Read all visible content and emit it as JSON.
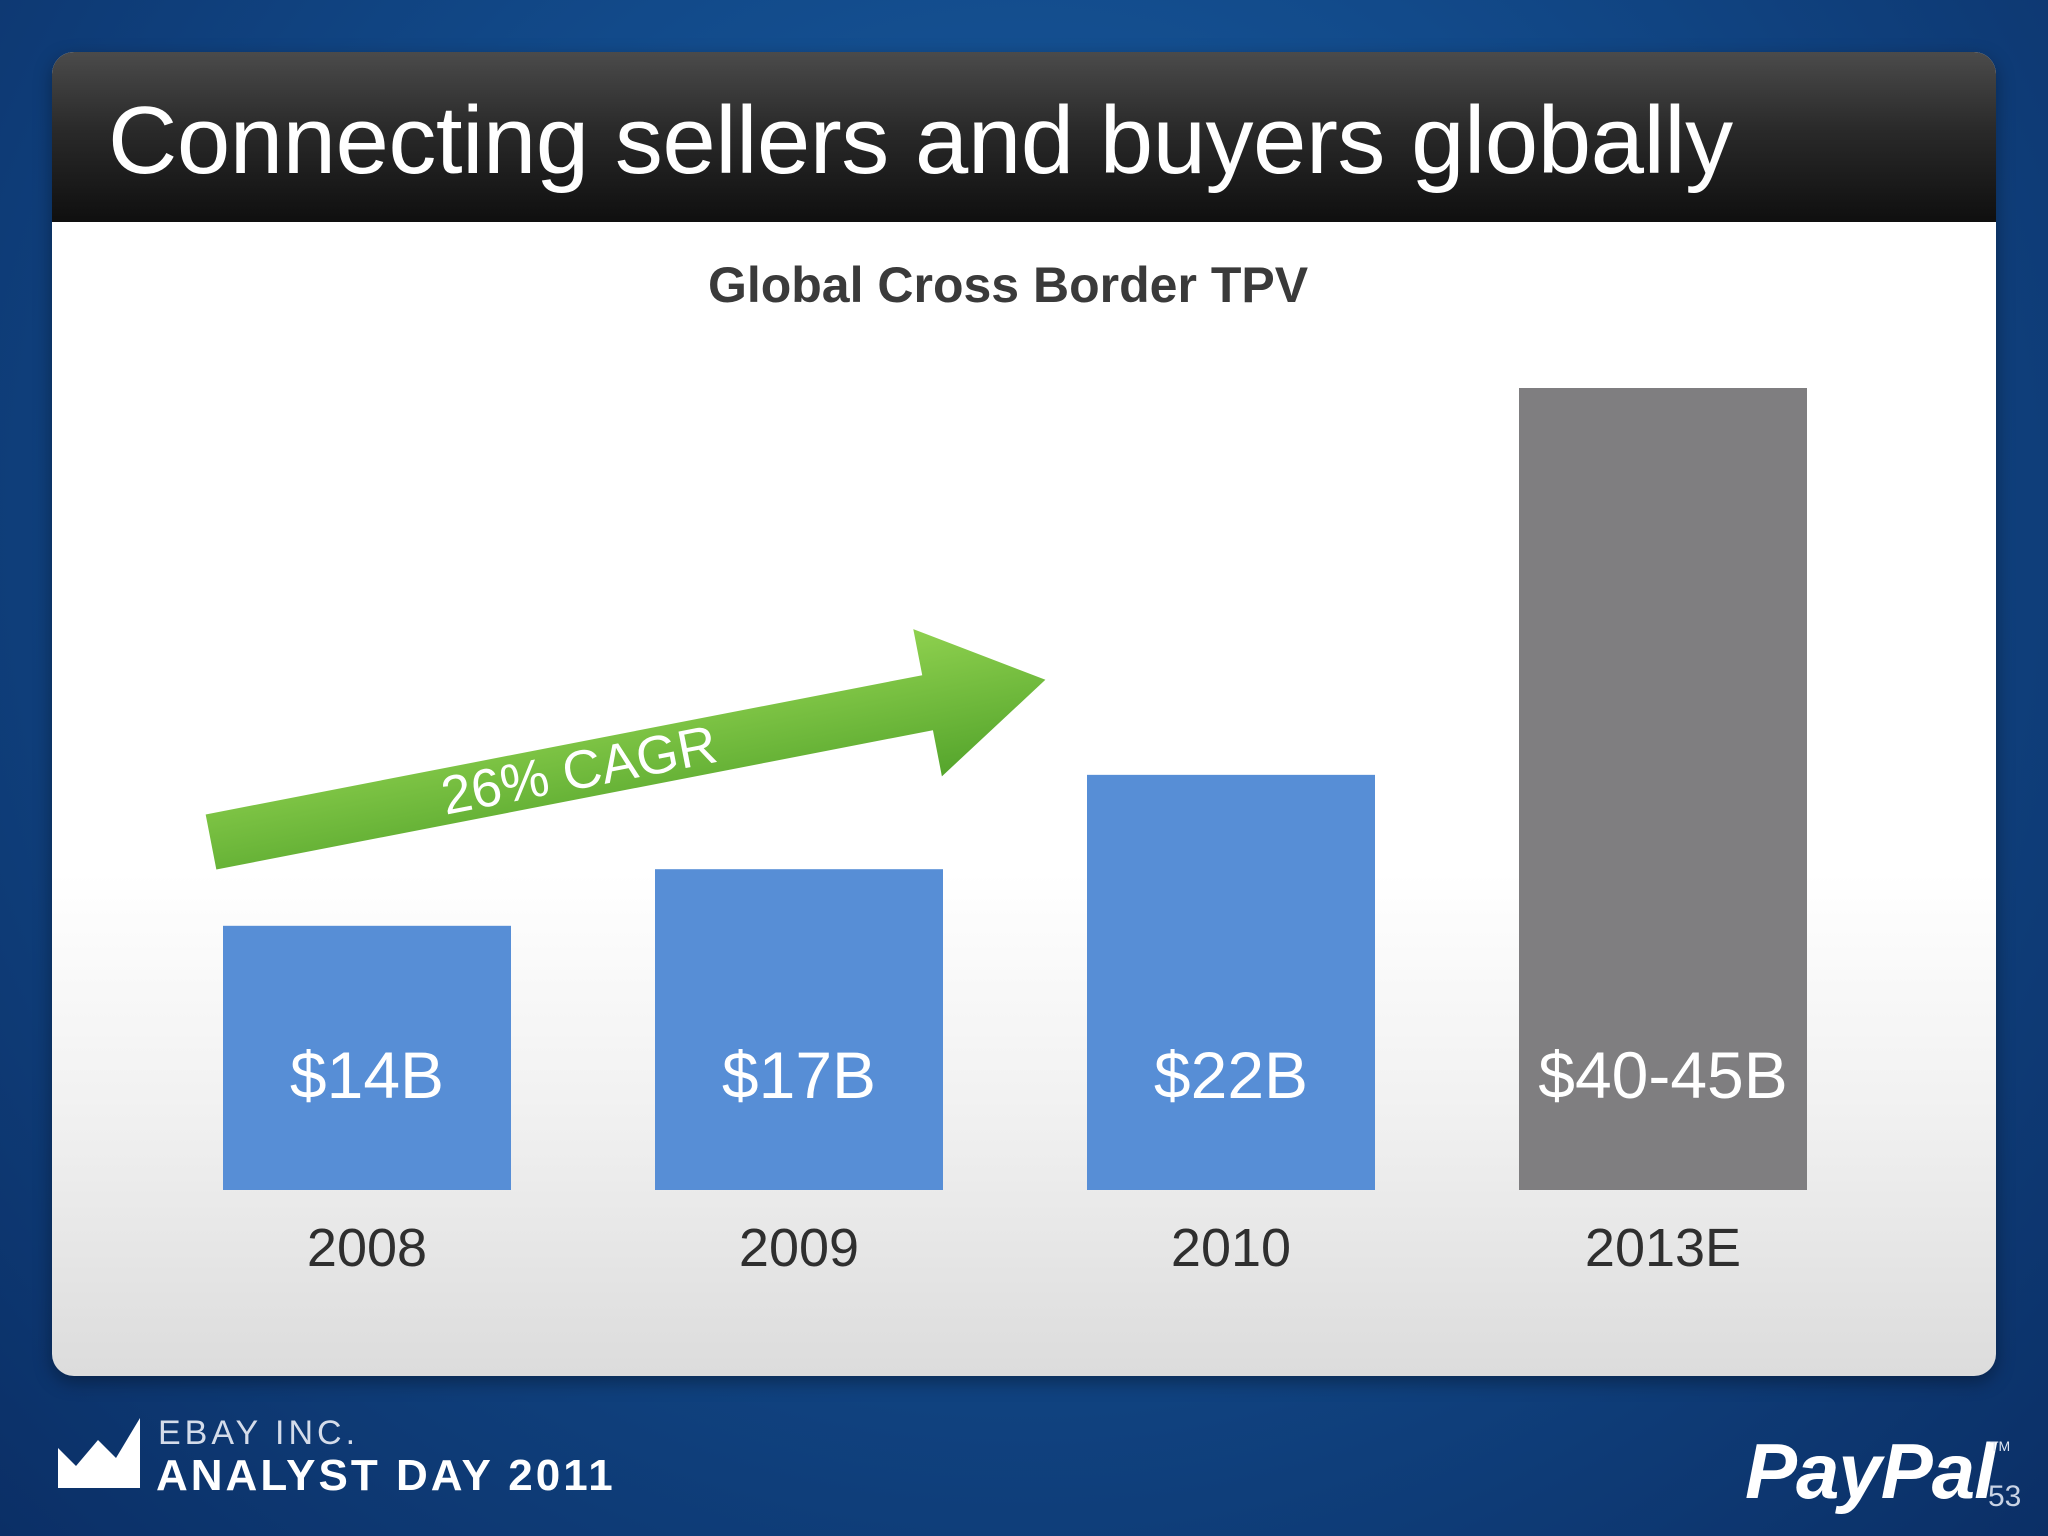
{
  "slide": {
    "title": "Connecting sellers and buyers globally",
    "page_number": "53"
  },
  "footer": {
    "company": "EBAY INC.",
    "event": "ANALYST DAY 2011",
    "brand": "PayPal",
    "trademark": "TM"
  },
  "chart_data": {
    "type": "bar",
    "title": "Global Cross Border TPV",
    "xlabel": "",
    "ylabel": "",
    "categories": [
      "2008",
      "2009",
      "2010",
      "2013E"
    ],
    "values": [
      14,
      17,
      22,
      42.5
    ],
    "value_labels": [
      "$14B",
      "$17B",
      "$22B",
      "$40-45B"
    ],
    "bar_colors": [
      "#578ed6",
      "#578ed6",
      "#578ed6",
      "#7f7e80"
    ],
    "unit": "$B",
    "ylim": [
      0,
      42.5
    ],
    "grid": false,
    "legend": "none",
    "annotation": {
      "text": "26% CAGR",
      "from_category": "2008",
      "to_category": "2010",
      "color": "#6cbb3a"
    }
  },
  "colors": {
    "background": "#124a8a",
    "title_bar": "#1f1f1f",
    "forecast_bar": "#7f7e80",
    "actual_bar": "#578ed6",
    "arrow": "#6cbb3a"
  }
}
